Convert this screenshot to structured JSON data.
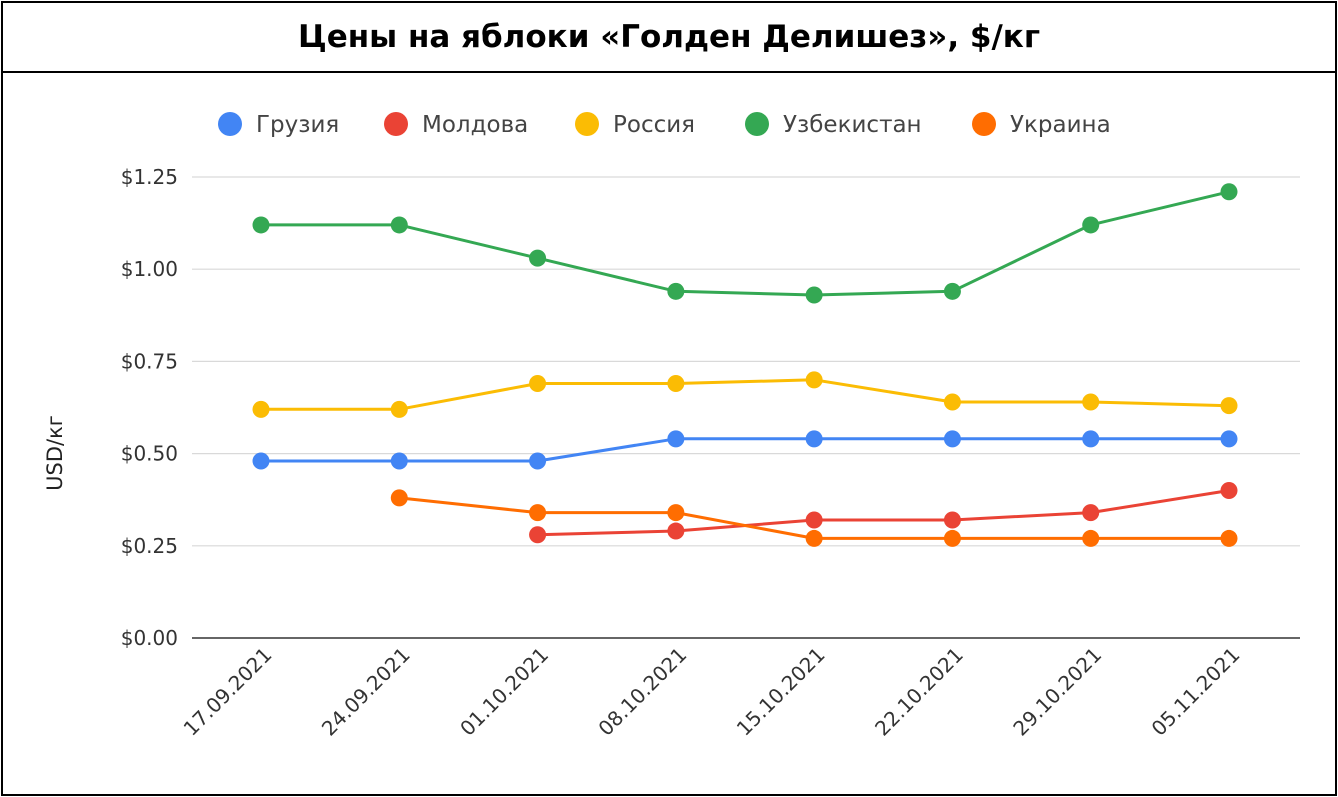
{
  "chart_data": {
    "type": "line",
    "title": "Цены на яблоки «Голден Делишез», $/кг",
    "xlabel": "",
    "ylabel": "USD/кг",
    "ylim": [
      0,
      1.25
    ],
    "y_ticks": [
      "$0.00",
      "$0.25",
      "$0.50",
      "$0.75",
      "$1.00",
      "$1.25"
    ],
    "y_tick_values": [
      0,
      0.25,
      0.5,
      0.75,
      1.0,
      1.25
    ],
    "grid": true,
    "legend_position": "top",
    "categories": [
      "17.09.2021",
      "24.09.2021",
      "01.10.2021",
      "08.10.2021",
      "15.10.2021",
      "22.10.2021",
      "29.10.2021",
      "05.11.2021"
    ],
    "series": [
      {
        "name": "Грузия",
        "color": "#4285F4",
        "values": [
          0.48,
          0.48,
          0.48,
          0.54,
          0.54,
          0.54,
          0.54,
          0.54
        ]
      },
      {
        "name": "Молдова",
        "color": "#EA4335",
        "values": [
          null,
          null,
          0.28,
          0.29,
          0.32,
          0.32,
          0.34,
          0.4
        ]
      },
      {
        "name": "Россия",
        "color": "#FBBC04",
        "values": [
          0.62,
          0.62,
          0.69,
          0.69,
          0.7,
          0.64,
          0.64,
          0.63
        ]
      },
      {
        "name": "Узбекистан",
        "color": "#34A853",
        "values": [
          1.12,
          1.12,
          1.03,
          0.94,
          0.93,
          0.94,
          1.12,
          1.21
        ]
      },
      {
        "name": "Украина",
        "color": "#FF6D01",
        "values": [
          null,
          0.38,
          0.34,
          0.34,
          0.27,
          0.27,
          0.27,
          0.27
        ]
      }
    ]
  }
}
